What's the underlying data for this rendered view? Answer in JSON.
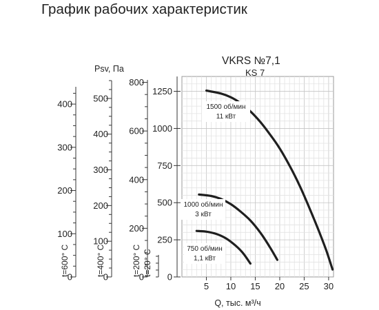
{
  "page": {
    "heading": "График рабочих характеристик"
  },
  "chart_data": {
    "type": "line",
    "model": "VKRS №7,1",
    "model_sub": "KS 7",
    "xlabel": "Q, тыс. м³/ч",
    "ylabel": "Psv, Па",
    "xlim": [
      0,
      31
    ],
    "ylim": [
      0,
      1350
    ],
    "x_ticks": [
      5,
      10,
      15,
      20,
      25,
      30
    ],
    "y_ticks": [
      0,
      250,
      500,
      750,
      1000,
      1250
    ],
    "grid": true,
    "series": [
      {
        "name": "1500 об/мин 11 кВт",
        "speed_label": "1500 об/мин",
        "power_label": "11 кВт",
        "x": [
          5.0,
          8.0,
          10.0,
          12.0,
          14.0,
          16.0,
          18.0,
          20.0,
          22.0,
          24.0,
          26.0,
          28.0,
          29.5,
          30.8
        ],
        "y": [
          1255,
          1235,
          1210,
          1170,
          1115,
          1045,
          960,
          865,
          750,
          620,
          470,
          310,
          180,
          50
        ]
      },
      {
        "name": "1000 об/мин 3 кВт",
        "speed_label": "1000 об/мин",
        "power_label": "3 кВт",
        "x": [
          3.5,
          6.0,
          8.0,
          10.0,
          12.0,
          14.0,
          16.0,
          18.0,
          19.5
        ],
        "y": [
          555,
          545,
          525,
          490,
          440,
          380,
          300,
          200,
          115
        ]
      },
      {
        "name": "750 об/мин 1,1 кВт",
        "speed_label": "750 об/мин",
        "power_label": "1,1 кВт",
        "x": [
          3.0,
          5.0,
          7.0,
          9.0,
          11.0,
          12.5,
          14.0
        ],
        "y": [
          310,
          305,
          290,
          260,
          210,
          160,
          90
        ]
      }
    ],
    "temperature_axes": [
      {
        "label": "t=600° C",
        "ticks": [
          0,
          100,
          200,
          300,
          400
        ]
      },
      {
        "label": "t=400° C",
        "ticks": [
          0,
          100,
          200,
          300,
          400,
          500
        ]
      },
      {
        "label": "t=200° C",
        "ticks": [
          0,
          200,
          400,
          600,
          800
        ]
      },
      {
        "label": "t=20° C",
        "ticks": []
      }
    ]
  }
}
